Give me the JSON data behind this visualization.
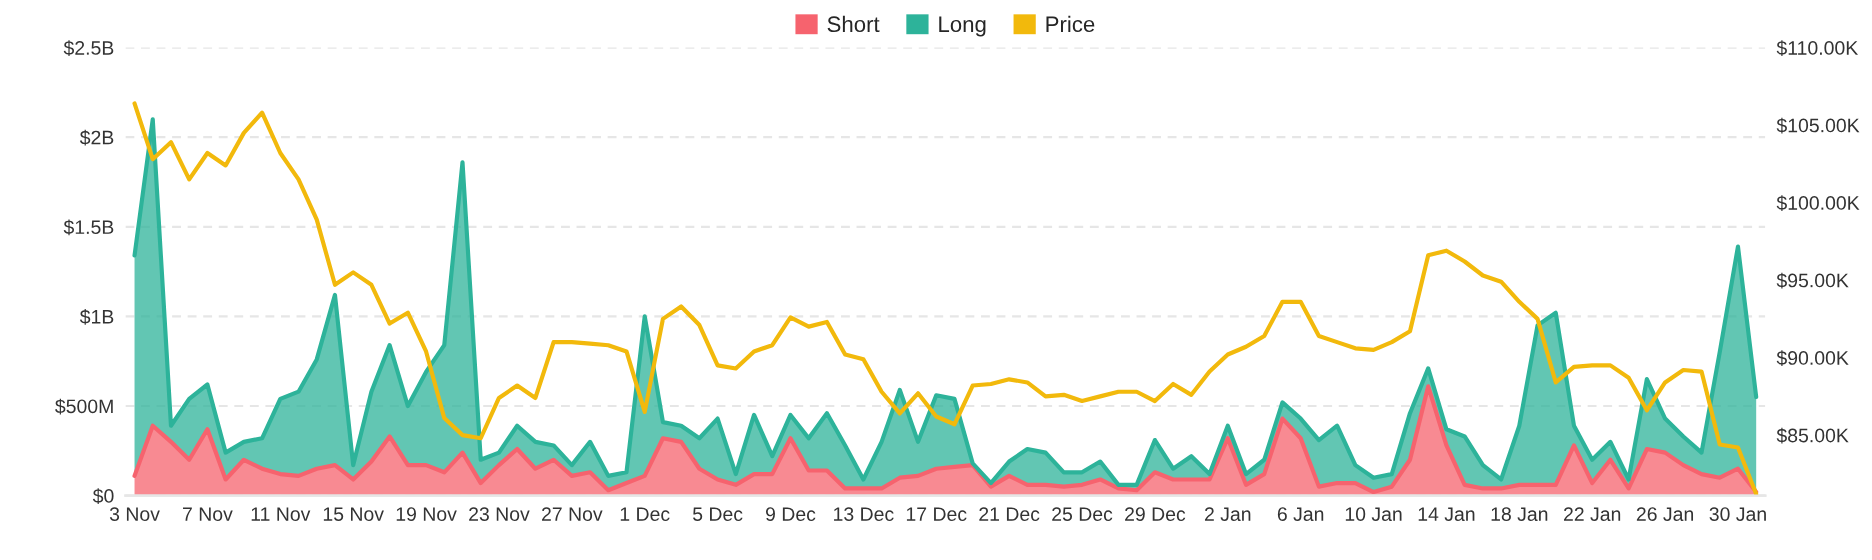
{
  "chart_data": {
    "type": "area",
    "stacked": true,
    "categories": [
      "3 Nov",
      null,
      null,
      null,
      "7 Nov",
      null,
      null,
      null,
      "11 Nov",
      null,
      null,
      null,
      "15 Nov",
      null,
      null,
      null,
      "19 Nov",
      null,
      null,
      null,
      "23 Nov",
      null,
      null,
      null,
      "27 Nov",
      null,
      null,
      null,
      "1 Dec",
      null,
      null,
      null,
      "5 Dec",
      null,
      null,
      null,
      "9 Dec",
      null,
      null,
      null,
      "13 Dec",
      null,
      null,
      null,
      "17 Dec",
      null,
      null,
      null,
      "21 Dec",
      null,
      null,
      null,
      "25 Dec",
      null,
      null,
      null,
      "29 Dec",
      null,
      null,
      null,
      "2 Jan",
      null,
      null,
      null,
      "6 Jan",
      null,
      null,
      null,
      "10 Jan",
      null,
      null,
      null,
      "14 Jan",
      null,
      null,
      null,
      "18 Jan",
      null,
      null,
      null,
      "22 Jan",
      null,
      null,
      null,
      "26 Jan",
      null,
      null,
      null,
      "30 Jan",
      null
    ],
    "series": [
      {
        "name": "Short",
        "color": "#f6636e",
        "values": [
          110000000.0,
          390000000.0,
          300000000.0,
          200000000.0,
          370000000.0,
          90000000.0,
          200000000.0,
          150000000.0,
          120000000.0,
          110000000.0,
          150000000.0,
          170000000.0,
          90000000.0,
          190000000.0,
          330000000.0,
          170000000.0,
          170000000.0,
          130000000.0,
          240000000.0,
          70000000.0,
          170000000.0,
          260000000.0,
          150000000.0,
          200000000.0,
          110000000.0,
          130000000.0,
          30000000.0,
          70000000.0,
          110000000.0,
          320000000.0,
          300000000.0,
          150000000.0,
          90000000.0,
          60000000.0,
          120000000.0,
          120000000.0,
          320000000.0,
          140000000.0,
          140000000.0,
          40000000.0,
          40000000.0,
          40000000.0,
          100000000.0,
          110000000.0,
          150000000.0,
          160000000.0,
          170000000.0,
          50000000.0,
          110000000.0,
          60000000.0,
          60000000.0,
          50000000.0,
          60000000.0,
          90000000.0,
          40000000.0,
          30000000.0,
          130000000.0,
          90000000.0,
          90000000.0,
          90000000.0,
          320000000.0,
          60000000.0,
          120000000.0,
          430000000.0,
          320000000.0,
          50000000.0,
          70000000.0,
          70000000.0,
          20000000.0,
          50000000.0,
          200000000.0,
          610000000.0,
          280000000.0,
          60000000.0,
          40000000.0,
          40000000.0,
          60000000.0,
          60000000.0,
          60000000.0,
          280000000.0,
          70000000.0,
          200000000.0,
          40000000.0,
          260000000.0,
          240000000.0,
          170000000.0,
          120000000.0,
          100000000.0,
          150000000.0,
          20000000.0
        ]
      },
      {
        "name": "Long",
        "color": "#2db39a",
        "values": [
          1230000000.0,
          1710000000.0,
          90000000.0,
          340000000.0,
          250000000.0,
          150000000.0,
          100000000.0,
          170000000.0,
          420000000.0,
          470000000.0,
          610000000.0,
          950000000.0,
          80000000.0,
          390000000.0,
          510000000.0,
          330000000.0,
          520000000.0,
          710000000.0,
          1620000000.0,
          130000000.0,
          70000000.0,
          130000000.0,
          150000000.0,
          80000000.0,
          60000000.0,
          170000000.0,
          80000000.0,
          60000000.0,
          890000000.0,
          90000000.0,
          90000000.0,
          170000000.0,
          340000000.0,
          60000000.0,
          330000000.0,
          100000000.0,
          130000000.0,
          180000000.0,
          320000000.0,
          240000000.0,
          50000000.0,
          260000000.0,
          490000000.0,
          190000000.0,
          410000000.0,
          380000000.0,
          10000000.0,
          20000000.0,
          80000000.0,
          200000000.0,
          180000000.0,
          80000000.0,
          70000000.0,
          100000000.0,
          20000000.0,
          30000000.0,
          180000000.0,
          60000000.0,
          130000000.0,
          30000000.0,
          70000000.0,
          60000000.0,
          80000000.0,
          90000000.0,
          110000000.0,
          260000000.0,
          320000000.0,
          100000000.0,
          80000000.0,
          70000000.0,
          260000000.0,
          100000000.0,
          90000000.0,
          270000000.0,
          130000000.0,
          50000000.0,
          330000000.0,
          890000000.0,
          960000000.0,
          110000000.0,
          130000000.0,
          100000000.0,
          50000000.0,
          390000000.0,
          190000000.0,
          160000000.0,
          120000000.0,
          700000000.0,
          1240000000.0,
          530000000.0
        ]
      },
      {
        "name": "Price",
        "type": "line",
        "axis": "y2",
        "color": "#f2b90c",
        "values": [
          106400,
          102800,
          103900,
          101500,
          103200,
          102400,
          104500,
          105800,
          103200,
          101500,
          98900,
          94700,
          95500,
          94700,
          92200,
          92900,
          90400,
          86100,
          85000,
          84800,
          87400,
          88200,
          87400,
          91000,
          91000,
          90900,
          90800,
          90400,
          86500,
          92500,
          93300,
          92100,
          89500,
          89300,
          90400,
          90800,
          92600,
          92000,
          92300,
          90200,
          89900,
          87800,
          86400,
          87700,
          86200,
          85700,
          88200,
          88300,
          88600,
          88400,
          87500,
          87600,
          87200,
          87500,
          87800,
          87800,
          87200,
          88300,
          87600,
          89100,
          90200,
          90700,
          91400,
          93600,
          93600,
          91400,
          91000,
          90600,
          90500,
          91000,
          91700,
          96600,
          96900,
          96200,
          95300,
          94900,
          93600,
          92500,
          88400,
          89400,
          89500,
          89500,
          88700,
          86600,
          88400,
          89200,
          89100,
          84400,
          84200,
          81200
        ]
      }
    ],
    "ylim": [
      0,
      2500000000.0
    ],
    "yticks": [
      {
        "value": 0,
        "label": "$0"
      },
      {
        "value": 500000000.0,
        "label": "$500M"
      },
      {
        "value": 1000000000.0,
        "label": "$1B"
      },
      {
        "value": 1500000000.0,
        "label": "$1.5B"
      },
      {
        "value": 2000000000.0,
        "label": "$2B"
      },
      {
        "value": 2500000000.0,
        "label": "$2.5B"
      }
    ],
    "y2lim": [
      81100,
      110000
    ],
    "y2ticks": [
      {
        "value": 85000,
        "label": "$85.00K"
      },
      {
        "value": 90000,
        "label": "$90.00K"
      },
      {
        "value": 95000,
        "label": "$95.00K"
      },
      {
        "value": 100000,
        "label": "$100.00K"
      },
      {
        "value": 105000,
        "label": "$105.00K"
      },
      {
        "value": 110000,
        "label": "$110.00K"
      }
    ],
    "grid": "y",
    "legend": "top"
  }
}
